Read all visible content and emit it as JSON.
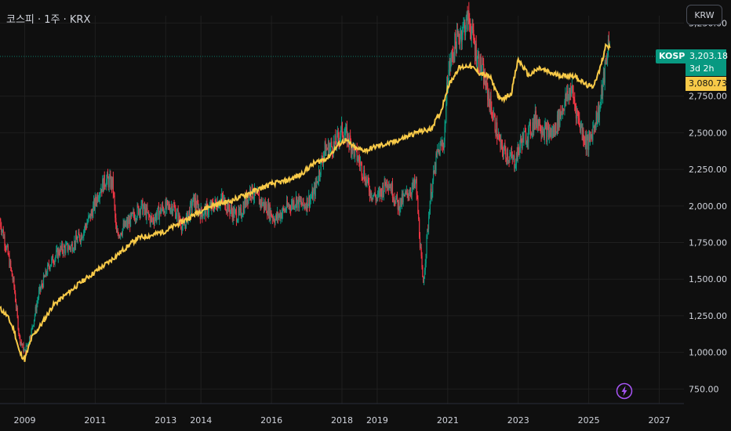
{
  "header": {
    "symbol_title": "코스피 · 1주 · KRX",
    "currency_button": "KRW"
  },
  "price_labels": {
    "ticker": "KOSPI",
    "last_price": "3,203.18",
    "countdown": "3d 2h",
    "comparison_price": "3,080.73"
  },
  "colors": {
    "background": "#0f0f0f",
    "grid": "#1f1f1f",
    "up": "#089981",
    "down": "#f23645",
    "comparison_line": "#f7c948",
    "axis_text": "#d1d4dc",
    "bolt": "#a855f7"
  },
  "icons": {
    "bolt": "lightning-bolt-icon"
  },
  "chart_data": {
    "type": "line",
    "title": "코스피 · 1주 · KRX",
    "xlabel": "",
    "ylabel": "",
    "x_ticks": [
      "2009",
      "2011",
      "2013",
      "2014",
      "2016",
      "2018",
      "2019",
      "2021",
      "2023",
      "2025",
      "2027"
    ],
    "x_tick_years": [
      2009,
      2011,
      2013,
      2014,
      2016,
      2018,
      2019,
      2021,
      2023,
      2025,
      2027
    ],
    "y_ticks": [
      "750.00",
      "1,000.00",
      "1,250.00",
      "1,500.00",
      "1,750.00",
      "2,000.00",
      "2,250.00",
      "2,500.00",
      "2,750.00",
      "3,250.00"
    ],
    "y_tick_values": [
      750,
      1000,
      1250,
      1500,
      1750,
      2000,
      2250,
      2500,
      2750,
      3250
    ],
    "xlim": [
      2008.3,
      2027.7
    ],
    "ylim": [
      650,
      3300
    ],
    "grid": true,
    "series": [
      {
        "name": "KOSPI",
        "style": "candles",
        "x": [
          2008.3,
          2008.5,
          2008.7,
          2008.85,
          2009.0,
          2009.2,
          2009.4,
          2009.7,
          2010.0,
          2010.3,
          2010.6,
          2010.9,
          2011.1,
          2011.3,
          2011.5,
          2011.6,
          2011.8,
          2012.0,
          2012.3,
          2012.6,
          2012.9,
          2013.2,
          2013.5,
          2013.8,
          2014.0,
          2014.3,
          2014.6,
          2014.9,
          2015.1,
          2015.4,
          2015.6,
          2015.9,
          2016.1,
          2016.4,
          2016.7,
          2016.9,
          2017.2,
          2017.5,
          2017.8,
          2018.0,
          2018.2,
          2018.5,
          2018.8,
          2019.0,
          2019.3,
          2019.6,
          2019.9,
          2020.1,
          2020.2,
          2020.3,
          2020.5,
          2020.7,
          2020.9,
          2021.0,
          2021.2,
          2021.4,
          2021.6,
          2021.8,
          2022.0,
          2022.2,
          2022.5,
          2022.7,
          2022.9,
          2023.1,
          2023.3,
          2023.5,
          2023.8,
          2024.0,
          2024.3,
          2024.5,
          2024.7,
          2024.9,
          2025.0,
          2025.2,
          2025.3,
          2025.5,
          2025.6
        ],
        "values": [
          1900,
          1700,
          1450,
          1100,
          1000,
          1150,
          1400,
          1600,
          1700,
          1720,
          1800,
          1950,
          2100,
          2180,
          2150,
          1800,
          1850,
          1900,
          2000,
          1900,
          1980,
          2000,
          1850,
          2040,
          1950,
          1990,
          2050,
          1950,
          1930,
          2110,
          2050,
          1980,
          1910,
          1980,
          2040,
          2000,
          2080,
          2380,
          2420,
          2520,
          2450,
          2300,
          2100,
          2050,
          2180,
          2000,
          2100,
          2150,
          1800,
          1450,
          2050,
          2350,
          2450,
          2900,
          3100,
          3200,
          3280,
          3050,
          2900,
          2700,
          2400,
          2350,
          2300,
          2450,
          2500,
          2600,
          2500,
          2500,
          2700,
          2800,
          2600,
          2450,
          2420,
          2600,
          2650,
          3000,
          3203
        ]
      },
      {
        "name": "",
        "style": "line",
        "x": [
          2008.3,
          2008.5,
          2008.7,
          2008.85,
          2009.0,
          2009.2,
          2009.5,
          2009.8,
          2010.2,
          2010.6,
          2011.0,
          2011.4,
          2011.8,
          2012.2,
          2012.6,
          2013.0,
          2013.3,
          2013.6,
          2014.0,
          2014.4,
          2014.8,
          2015.2,
          2015.6,
          2016.0,
          2016.4,
          2016.8,
          2017.2,
          2017.6,
          2017.9,
          2018.1,
          2018.4,
          2018.7,
          2019.0,
          2019.4,
          2019.8,
          2020.2,
          2020.5,
          2020.8,
          2021.0,
          2021.3,
          2021.6,
          2021.9,
          2022.2,
          2022.5,
          2022.8,
          2023.0,
          2023.3,
          2023.6,
          2024.0,
          2024.3,
          2024.6,
          2024.9,
          2025.1,
          2025.3,
          2025.5,
          2025.6
        ],
        "values": [
          1300,
          1250,
          1150,
          1000,
          950,
          1100,
          1200,
          1320,
          1400,
          1480,
          1550,
          1620,
          1700,
          1780,
          1800,
          1830,
          1870,
          1910,
          1970,
          2010,
          2030,
          2070,
          2110,
          2150,
          2170,
          2210,
          2290,
          2330,
          2420,
          2450,
          2390,
          2380,
          2410,
          2430,
          2470,
          2510,
          2520,
          2640,
          2810,
          2940,
          2960,
          2910,
          2880,
          2720,
          2770,
          3000,
          2890,
          2940,
          2900,
          2890,
          2890,
          2830,
          2810,
          2920,
          3110,
          3080
        ]
      }
    ]
  }
}
